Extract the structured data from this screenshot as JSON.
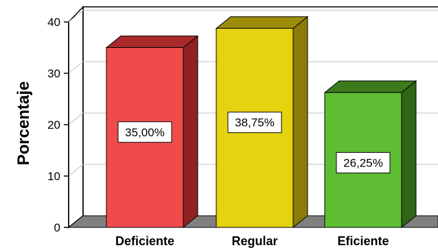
{
  "chart_data": {
    "type": "bar",
    "categories": [
      "Deficiente",
      "Regular",
      "Eficiente"
    ],
    "values": [
      35.0,
      38.75,
      26.25
    ],
    "data_labels": [
      "35,00%",
      "38,75%",
      "26,25%"
    ],
    "ylabel": "Porcentaje",
    "xlabel": "",
    "ylim": [
      0,
      40
    ],
    "yticks": [
      0,
      10,
      20,
      30,
      40
    ],
    "grid": true,
    "style": "3d",
    "colors": {
      "front": [
        "#f04b4b",
        "#e6d30f",
        "#5ebd32"
      ],
      "top": [
        "#a82a2a",
        "#9c8c08",
        "#3c7a1c"
      ],
      "side": [
        "#8e2222",
        "#8a7c06",
        "#2f6517"
      ],
      "gridline": "#c0c0c0",
      "floor": "#808080"
    }
  }
}
